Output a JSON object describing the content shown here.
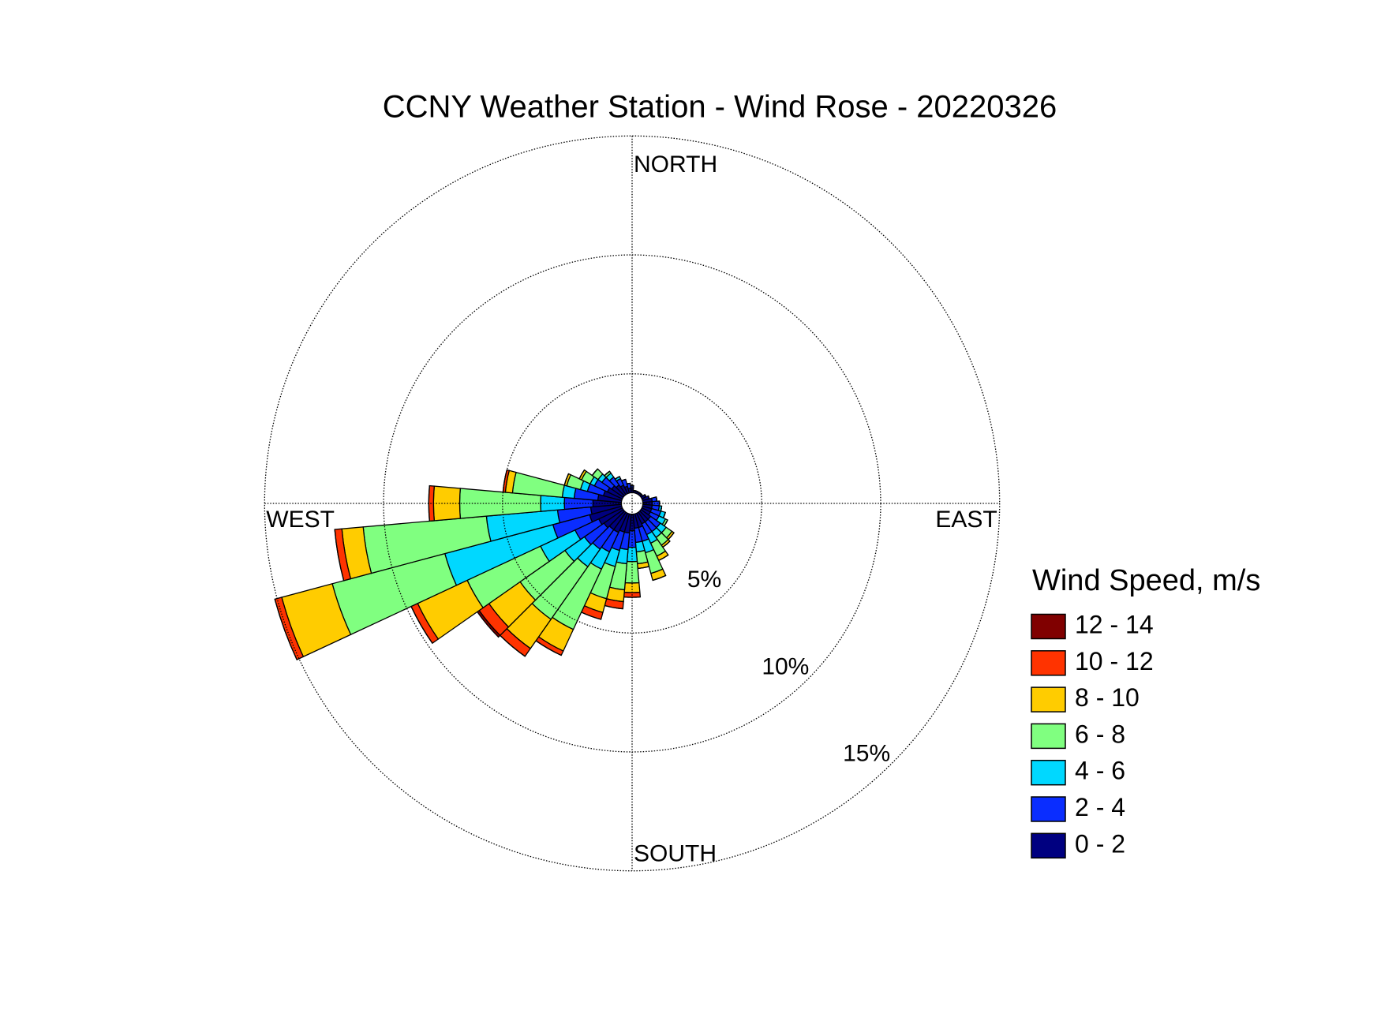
{
  "chart_data": {
    "type": "windrose",
    "title": "CCNY Weather Station - Wind Rose - 20220326",
    "direction_labels": [
      "NORTH",
      "EAST",
      "SOUTH",
      "WEST"
    ],
    "legend_title": "Wind Speed, m/s",
    "directions": [
      0,
      10,
      20,
      30,
      40,
      50,
      60,
      70,
      80,
      90,
      100,
      110,
      120,
      130,
      140,
      150,
      160,
      170,
      180,
      190,
      200,
      210,
      220,
      230,
      240,
      250,
      260,
      270,
      280,
      290,
      300,
      310,
      320,
      330,
      340,
      350
    ],
    "rlim": [
      0,
      15
    ],
    "rticks": [
      {
        "value": 5,
        "label": "5%"
      },
      {
        "value": 10,
        "label": "10%"
      },
      {
        "value": 15,
        "label": "15%"
      }
    ],
    "grid": true,
    "series": [
      {
        "name": "0 - 2",
        "color": "#000080",
        "values": [
          0.2,
          0.1,
          0.1,
          0.1,
          0.1,
          0.1,
          0.2,
          0.3,
          0.4,
          0.4,
          0.4,
          0.4,
          0.4,
          0.5,
          0.5,
          0.5,
          0.6,
          0.6,
          0.7,
          0.8,
          0.8,
          0.9,
          0.9,
          1.0,
          1.1,
          1.4,
          1.3,
          1.2,
          1.0,
          0.8,
          0.7,
          0.6,
          0.5,
          0.4,
          0.3,
          0.2
        ]
      },
      {
        "name": "2 - 4",
        "color": "#0a2dff",
        "values": [
          0.1,
          0,
          0,
          0,
          0,
          0,
          0,
          0,
          0.2,
          0.3,
          0.3,
          0.4,
          0.4,
          0.5,
          0.5,
          0.5,
          0.6,
          0.6,
          0.7,
          0.7,
          0.8,
          0.9,
          1.0,
          1.0,
          1.1,
          1.6,
          1.4,
          1.2,
          1.0,
          0.7,
          0.6,
          0.5,
          0.4,
          0.3,
          0.3,
          0.2
        ]
      },
      {
        "name": "4 - 6",
        "color": "#00d8ff",
        "values": [
          0,
          0,
          0,
          0,
          0,
          0,
          0,
          0,
          0,
          0,
          0.1,
          0.2,
          0.3,
          0.3,
          0.3,
          0.4,
          0.5,
          0.4,
          0.6,
          0.6,
          0.7,
          0.8,
          0.9,
          1.0,
          1.6,
          4.7,
          3.0,
          1.0,
          0.5,
          0.3,
          0.2,
          0.2,
          0.2,
          0.1,
          0,
          0
        ]
      },
      {
        "name": "6 - 8",
        "color": "#80ff80",
        "values": [
          0,
          0,
          0,
          0,
          0,
          0,
          0,
          0,
          0,
          0,
          0,
          0,
          0.1,
          0.3,
          0.4,
          0.6,
          0.9,
          0.5,
          0.9,
          1.1,
          1.4,
          2.8,
          2.7,
          2.3,
          3.4,
          4.9,
          5.2,
          3.4,
          2.1,
          0.6,
          0.4,
          0.3,
          0.1,
          0,
          0,
          0
        ]
      },
      {
        "name": "8 - 10",
        "color": "#ffcc00",
        "values": [
          0,
          0,
          0,
          0,
          0,
          0,
          0,
          0,
          0,
          0,
          0,
          0,
          0,
          0.1,
          0.1,
          0.2,
          0.3,
          0.2,
          0.4,
          0.5,
          0.6,
          1.0,
          1.5,
          1.6,
          2.3,
          2.2,
          0.9,
          1.1,
          0.3,
          0.1,
          0.1,
          0,
          0,
          0,
          0,
          0
        ]
      },
      {
        "name": "10 - 12",
        "color": "#ff3300",
        "values": [
          0,
          0,
          0,
          0,
          0,
          0,
          0,
          0,
          0,
          0,
          0,
          0,
          0,
          0,
          0,
          0,
          0,
          0,
          0.2,
          0.3,
          0.3,
          0.2,
          0.4,
          0.5,
          0.3,
          0.3,
          0.3,
          0.2,
          0.1,
          0,
          0,
          0,
          0,
          0,
          0,
          0
        ]
      },
      {
        "name": "12 - 14",
        "color": "#800000",
        "values": [
          0,
          0,
          0,
          0,
          0,
          0,
          0,
          0,
          0,
          0,
          0,
          0,
          0,
          0,
          0,
          0,
          0,
          0,
          0,
          0,
          0,
          0,
          0,
          0.1,
          0,
          0,
          0,
          0,
          0,
          0,
          0,
          0,
          0,
          0,
          0,
          0
        ]
      }
    ]
  }
}
